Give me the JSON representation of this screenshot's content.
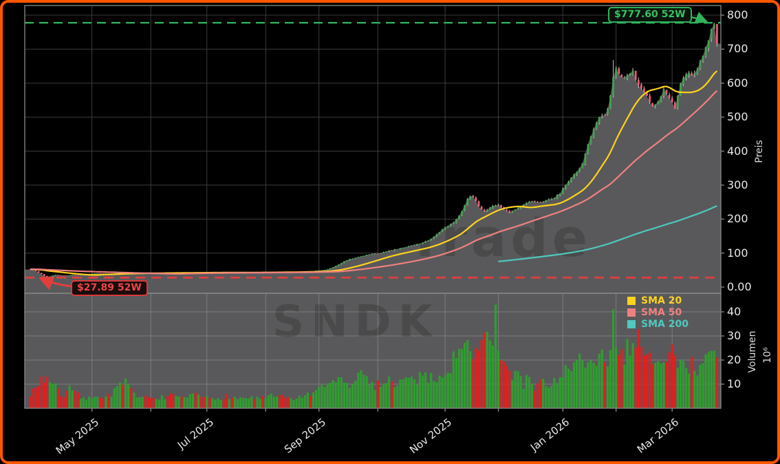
{
  "chart_data": {
    "type": "candlestick_with_volume",
    "watermarks": {
      "brand": "Trade",
      "ticker": "SNDK"
    },
    "annotations": {
      "high": {
        "label": "$777.60 52W",
        "value": 777.6
      },
      "low": {
        "label": "$27.89 52W",
        "value": 27.89
      }
    },
    "legend": [
      {
        "label": "SMA 20",
        "color": "#ffd21e",
        "window": 20
      },
      {
        "label": "SMA 50",
        "color": "#f08080",
        "window": 50
      },
      {
        "label": "SMA 200",
        "color": "#4fc8bd",
        "window": 200
      }
    ],
    "price_axis": {
      "label": "Preis",
      "ticks": [
        "0.00",
        "100",
        "200",
        "300",
        "400",
        "500",
        "600",
        "700",
        "800"
      ],
      "min": 0,
      "max": 800
    },
    "volume_axis": {
      "label": "Volumen",
      "scale_label": "10⁶",
      "ticks": [
        "10",
        "20",
        "30",
        "40"
      ],
      "unit_millions": true
    },
    "month_ticks": [
      {
        "day": 22,
        "label": "May 2025"
      },
      {
        "day": 43,
        "label": ""
      },
      {
        "day": 63,
        "label": "Jul 2025"
      },
      {
        "day": 84,
        "label": ""
      },
      {
        "day": 103,
        "label": "Sep 2025"
      },
      {
        "day": 124,
        "label": ""
      },
      {
        "day": 148,
        "label": "Nov 2025"
      },
      {
        "day": 167,
        "label": ""
      },
      {
        "day": 190,
        "label": "Jan 2026"
      },
      {
        "day": 209,
        "label": ""
      },
      {
        "day": 229,
        "label": "Mar 2026"
      }
    ],
    "days_total": 246,
    "price_anchors": [
      [
        0,
        52
      ],
      [
        1,
        50
      ],
      [
        2,
        47
      ],
      [
        3,
        42
      ],
      [
        4,
        38
      ],
      [
        5,
        33
      ],
      [
        6,
        29
      ],
      [
        7,
        31.5
      ],
      [
        8,
        34
      ],
      [
        9,
        36
      ],
      [
        11,
        34.5
      ],
      [
        13,
        33.5
      ],
      [
        15,
        36.5
      ],
      [
        17,
        35.5
      ],
      [
        19,
        37.5
      ],
      [
        21,
        39
      ],
      [
        24,
        40.5
      ],
      [
        28,
        39.5
      ],
      [
        32,
        41
      ],
      [
        36,
        40
      ],
      [
        40,
        42
      ],
      [
        44,
        41
      ],
      [
        48,
        42.5
      ],
      [
        52,
        41.5
      ],
      [
        56,
        42.5
      ],
      [
        60,
        43.5
      ],
      [
        64,
        42.5
      ],
      [
        68,
        43.5
      ],
      [
        72,
        42
      ],
      [
        76,
        43
      ],
      [
        80,
        44
      ],
      [
        84,
        43.5
      ],
      [
        88,
        45
      ],
      [
        92,
        44
      ],
      [
        96,
        45.5
      ],
      [
        100,
        47
      ],
      [
        103,
        48.5
      ],
      [
        106,
        52
      ],
      [
        108,
        58
      ],
      [
        110,
        66
      ],
      [
        112,
        76
      ],
      [
        114,
        82
      ],
      [
        116,
        86
      ],
      [
        118,
        90
      ],
      [
        120,
        94
      ],
      [
        122,
        97
      ],
      [
        124,
        99
      ],
      [
        126,
        102
      ],
      [
        128,
        107
      ],
      [
        130,
        110
      ],
      [
        132,
        114
      ],
      [
        134,
        118
      ],
      [
        136,
        123
      ],
      [
        138,
        126
      ],
      [
        140,
        130
      ],
      [
        142,
        138
      ],
      [
        144,
        148
      ],
      [
        146,
        162
      ],
      [
        148,
        175
      ],
      [
        150,
        185
      ],
      [
        152,
        198
      ],
      [
        153,
        210
      ],
      [
        154,
        225
      ],
      [
        155,
        242
      ],
      [
        156,
        258
      ],
      [
        157,
        270
      ],
      [
        158,
        265
      ],
      [
        159,
        252
      ],
      [
        160,
        238
      ],
      [
        161,
        228
      ],
      [
        162,
        221
      ],
      [
        163,
        226
      ],
      [
        165,
        238
      ],
      [
        167,
        242
      ],
      [
        169,
        228
      ],
      [
        171,
        220
      ],
      [
        173,
        228
      ],
      [
        175,
        238
      ],
      [
        177,
        247
      ],
      [
        179,
        252
      ],
      [
        181,
        248
      ],
      [
        183,
        252
      ],
      [
        185,
        256
      ],
      [
        187,
        263
      ],
      [
        189,
        277
      ],
      [
        191,
        300
      ],
      [
        193,
        320
      ],
      [
        194,
        333
      ],
      [
        196,
        350
      ],
      [
        197,
        362
      ],
      [
        199,
        420
      ],
      [
        201,
        463
      ],
      [
        203,
        497
      ],
      [
        205,
        508
      ],
      [
        206,
        519
      ],
      [
        207,
        560
      ],
      [
        208,
        615
      ],
      [
        209,
        640
      ],
      [
        210,
        630
      ],
      [
        211,
        615
      ],
      [
        212,
        618
      ],
      [
        214,
        632
      ],
      [
        215,
        640
      ],
      [
        216,
        615
      ],
      [
        217,
        598
      ],
      [
        218,
        585
      ],
      [
        220,
        560
      ],
      [
        221,
        545
      ],
      [
        222,
        530
      ],
      [
        223,
        535
      ],
      [
        224,
        545
      ],
      [
        225,
        565
      ],
      [
        226,
        585
      ],
      [
        227,
        572
      ],
      [
        228,
        560
      ],
      [
        229,
        540
      ],
      [
        230,
        525
      ],
      [
        231,
        558
      ],
      [
        232,
        600
      ],
      [
        233,
        615
      ],
      [
        234,
        628
      ],
      [
        235,
        632
      ],
      [
        236,
        628
      ],
      [
        237,
        630
      ],
      [
        239,
        660
      ],
      [
        240,
        680
      ],
      [
        241,
        700
      ],
      [
        242,
        728
      ],
      [
        243,
        755
      ],
      [
        244,
        768
      ],
      [
        245,
        714
      ]
    ],
    "volume_anchors_millions": [
      [
        0,
        6
      ],
      [
        2,
        9
      ],
      [
        4,
        12
      ],
      [
        6,
        13
      ],
      [
        8,
        10
      ],
      [
        10,
        7
      ],
      [
        12,
        5
      ],
      [
        14,
        8
      ],
      [
        16,
        6
      ],
      [
        18,
        5
      ],
      [
        20,
        4.5
      ],
      [
        23,
        4
      ],
      [
        26,
        5
      ],
      [
        29,
        6
      ],
      [
        32,
        9
      ],
      [
        34,
        10.5
      ],
      [
        36,
        7
      ],
      [
        39,
        5
      ],
      [
        42,
        4
      ],
      [
        46,
        4.5
      ],
      [
        50,
        5
      ],
      [
        54,
        4
      ],
      [
        58,
        5.5
      ],
      [
        62,
        4.5
      ],
      [
        66,
        4
      ],
      [
        70,
        5
      ],
      [
        74,
        4
      ],
      [
        78,
        4.5
      ],
      [
        82,
        4
      ],
      [
        86,
        5
      ],
      [
        90,
        4.5
      ],
      [
        94,
        4
      ],
      [
        98,
        5
      ],
      [
        101,
        6
      ],
      [
        104,
        8
      ],
      [
        107,
        10
      ],
      [
        110,
        13
      ],
      [
        113,
        9
      ],
      [
        116,
        12
      ],
      [
        119,
        14
      ],
      [
        122,
        9
      ],
      [
        125,
        11
      ],
      [
        128,
        12
      ],
      [
        131,
        10
      ],
      [
        134,
        13
      ],
      [
        137,
        11
      ],
      [
        140,
        15
      ],
      [
        143,
        12
      ],
      [
        146,
        14
      ],
      [
        149,
        17
      ],
      [
        152,
        21
      ],
      [
        155,
        26
      ],
      [
        157,
        23
      ],
      [
        159,
        28
      ],
      [
        161,
        25
      ],
      [
        163,
        29
      ],
      [
        165,
        24
      ],
      [
        166,
        43
      ],
      [
        167,
        26
      ],
      [
        168,
        20
      ],
      [
        170,
        16
      ],
      [
        172,
        12
      ],
      [
        174,
        15
      ],
      [
        176,
        10
      ],
      [
        178,
        13
      ],
      [
        180,
        9
      ],
      [
        182,
        12
      ],
      [
        184,
        9
      ],
      [
        186,
        11
      ],
      [
        188,
        12
      ],
      [
        190,
        14
      ],
      [
        192,
        16
      ],
      [
        194,
        18
      ],
      [
        196,
        21
      ],
      [
        198,
        15
      ],
      [
        200,
        19
      ],
      [
        202,
        16
      ],
      [
        204,
        23
      ],
      [
        206,
        20
      ],
      [
        208,
        41
      ],
      [
        209,
        28
      ],
      [
        210,
        24
      ],
      [
        212,
        22
      ],
      [
        214,
        26
      ],
      [
        216,
        23
      ],
      [
        217,
        27
      ],
      [
        218,
        21
      ],
      [
        220,
        25
      ],
      [
        222,
        18
      ],
      [
        224,
        22
      ],
      [
        226,
        17
      ],
      [
        228,
        25
      ],
      [
        230,
        20
      ],
      [
        232,
        23
      ],
      [
        234,
        17
      ],
      [
        236,
        20
      ],
      [
        238,
        14
      ],
      [
        240,
        17
      ],
      [
        242,
        20
      ],
      [
        244,
        22
      ],
      [
        245,
        23
      ]
    ],
    "special_days": {
      "low_day": 6,
      "high_day": 244,
      "spike_day": 208,
      "spike_high": 668,
      "volume_spikes": {
        "166": 43,
        "208": 41
      }
    }
  },
  "colors": {
    "background": "#000000",
    "frame_border": "#ff5700",
    "panel_gray": "#59595b",
    "grid_dark": "#3c3c3c",
    "grid_light": "#7d7d7f",
    "spine": "#8a8a8a",
    "tick_text": "#e8e8e8",
    "candle_up": "#41a24e",
    "candle_down": "#e95b74",
    "wick": "#c9c9c9",
    "volume_up": "#2f9e2f",
    "volume_down": "#e01f1f",
    "high_line": "#2fb35c",
    "low_line": "#e23e3e",
    "watermark": "rgba(0,0,0,0.17)"
  }
}
